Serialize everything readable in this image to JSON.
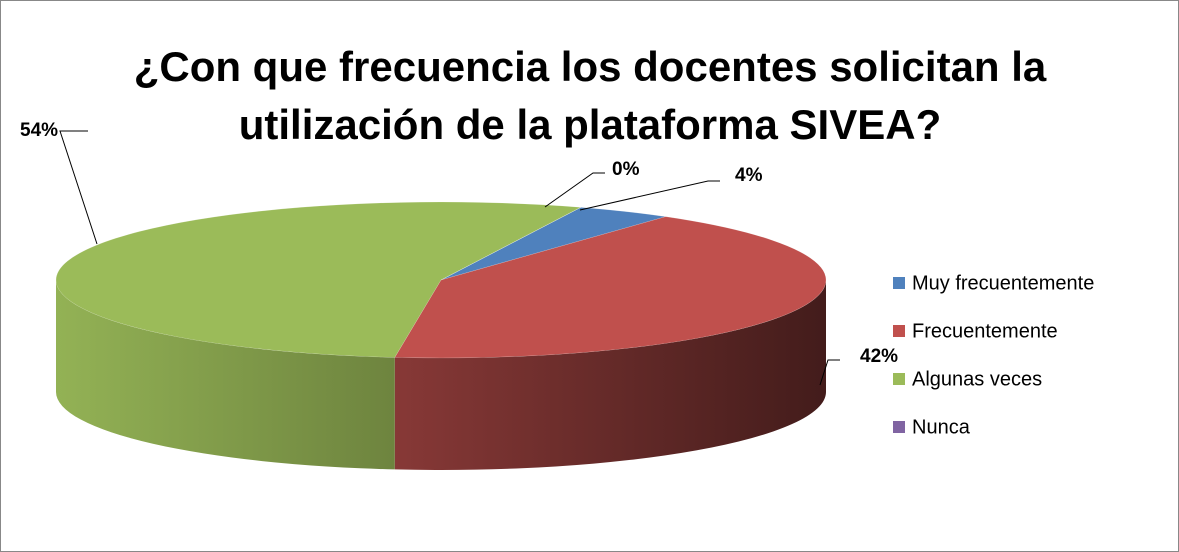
{
  "chart_data": {
    "type": "pie3d",
    "title": "¿Con que frecuencia los docentes solicitan la utilización de la plataforma SIVEA?",
    "categories": [
      "Muy frecuentemente",
      "Frecuentemente",
      "Algunas veces",
      "Nunca"
    ],
    "values": [
      4,
      42,
      54,
      0
    ],
    "value_labels": [
      "4%",
      "42%",
      "54%",
      "0%"
    ],
    "colors": [
      "#4f81bd",
      "#c0504d",
      "#9bbb59",
      "#8064a2"
    ],
    "legend": "right"
  }
}
